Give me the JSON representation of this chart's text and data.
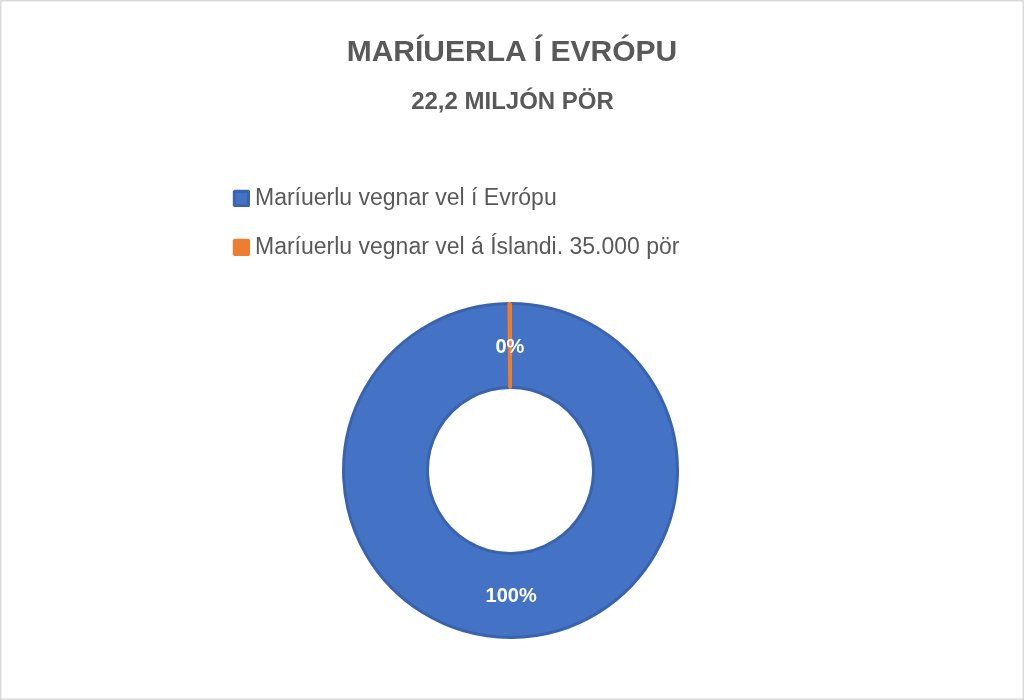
{
  "chart_data": {
    "type": "donut",
    "title": "MARÍUERLA Í EVRÓPU",
    "subtitle": "22,2 MILJÓN PÖR",
    "categories": [
      "Maríuerlu vegnar vel í Evrópu",
      "Maríuerlu vegnar vel á Íslandi. 35.000 pör"
    ],
    "values": [
      99.84,
      0.16
    ],
    "value_labels": [
      "100%",
      "0%"
    ],
    "colors": [
      "#4472c4",
      "#ed7d31"
    ],
    "legend": "top"
  }
}
